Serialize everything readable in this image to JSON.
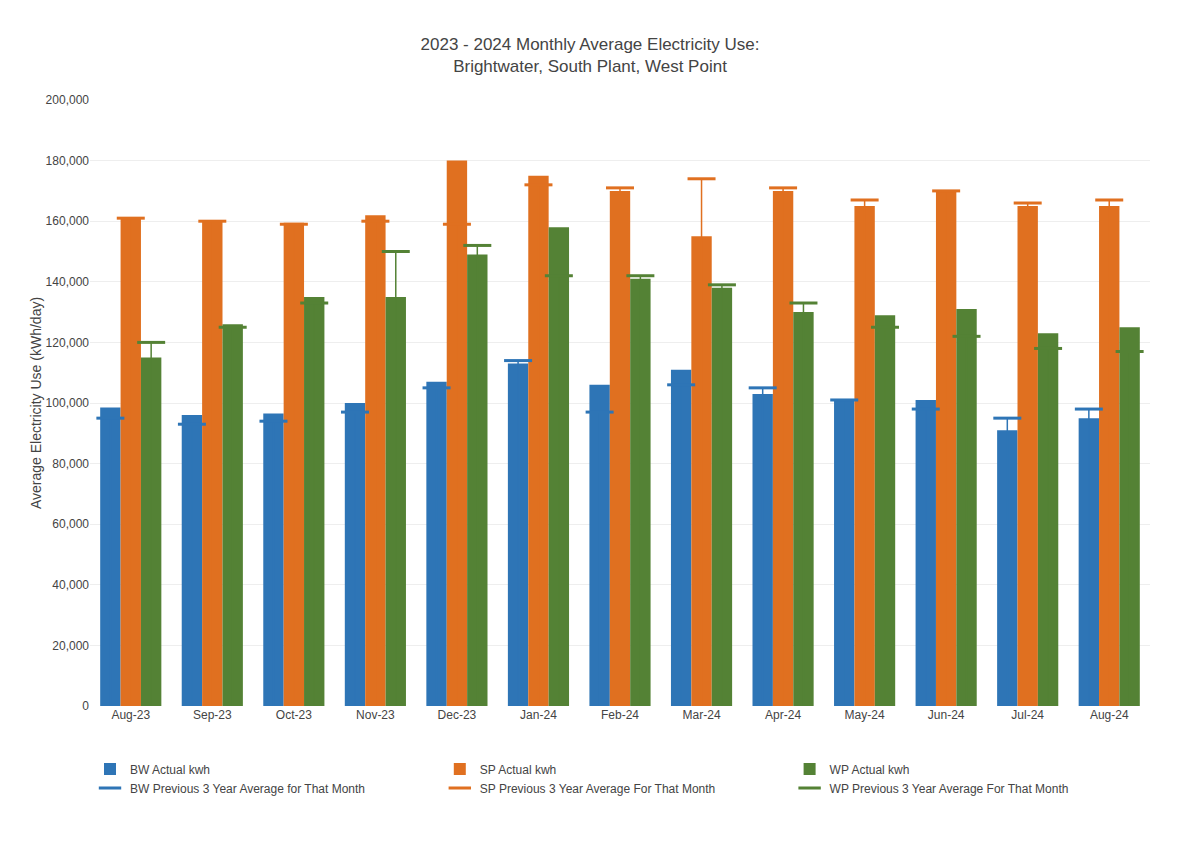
{
  "chart_data": {
    "type": "bar",
    "title": "2023 - 2024 Monthly Average Electricity Use:\nBrightwater, South Plant, West Point",
    "ylabel": "Average Electricity Use (kWh/day)",
    "categories": [
      "Aug-23",
      "Sep-23",
      "Oct-23",
      "Nov-23",
      "Dec-23",
      "Jan-24",
      "Feb-24",
      "Mar-24",
      "Apr-24",
      "May-24",
      "Jun-24",
      "Jul-24",
      "Aug-24"
    ],
    "series": [
      {
        "name": "BW Actual kwh",
        "type": "bar",
        "color": "#2E75B6",
        "values": [
          98500,
          96000,
          96500,
          100000,
          107000,
          113000,
          106000,
          111000,
          103000,
          101000,
          101000,
          91000,
          95000
        ]
      },
      {
        "name": "SP Actual kwh",
        "type": "bar",
        "color": "#E07020",
        "values": [
          161000,
          160000,
          159500,
          162000,
          180000,
          175000,
          170000,
          155000,
          170000,
          165000,
          170000,
          165000,
          165000
        ]
      },
      {
        "name": "WP Actual kwh",
        "type": "bar",
        "color": "#548235",
        "values": [
          115000,
          126000,
          135000,
          135000,
          149000,
          158000,
          141000,
          138000,
          130000,
          129000,
          131000,
          123000,
          125000
        ]
      },
      {
        "name": "BW Previous 3 Year Average for That Month",
        "type": "scatter",
        "marker": "dash",
        "color": "#2E75B6",
        "values": [
          95000,
          93000,
          94000,
          97000,
          105000,
          114000,
          97000,
          106000,
          105000,
          101000,
          98000,
          95000,
          98000
        ]
      },
      {
        "name": "SP Previous 3 Year Average For That Month",
        "type": "scatter",
        "marker": "dash",
        "color": "#E07020",
        "values": [
          161000,
          160000,
          159000,
          160000,
          159000,
          172000,
          171000,
          174000,
          171000,
          167000,
          170000,
          166000,
          167000
        ]
      },
      {
        "name": "WP Previous 3 Year Average For That Month",
        "type": "scatter",
        "marker": "dash",
        "color": "#548235",
        "values": [
          120000,
          125000,
          133000,
          150000,
          152000,
          142000,
          142000,
          139000,
          133000,
          125000,
          122000,
          118000,
          117000
        ]
      }
    ],
    "ylim": [
      0,
      200000
    ],
    "yticks": [
      0,
      {
        "value": 20000,
        "label": "20,000"
      },
      {
        "value": 40000,
        "label": "40,000"
      },
      {
        "value": 60000,
        "label": "60,000"
      },
      {
        "value": 80000,
        "label": "80,000"
      },
      {
        "value": 100000,
        "label": "100,000"
      },
      {
        "value": 120000,
        "label": "120,000"
      },
      {
        "value": 140000,
        "label": "140,000"
      },
      {
        "value": 160000,
        "label": "160,000"
      },
      {
        "value": 180000,
        "label": "180,000"
      },
      {
        "value": 200000,
        "label": "200,000"
      }
    ],
    "grid": true,
    "legend": "bottom"
  }
}
